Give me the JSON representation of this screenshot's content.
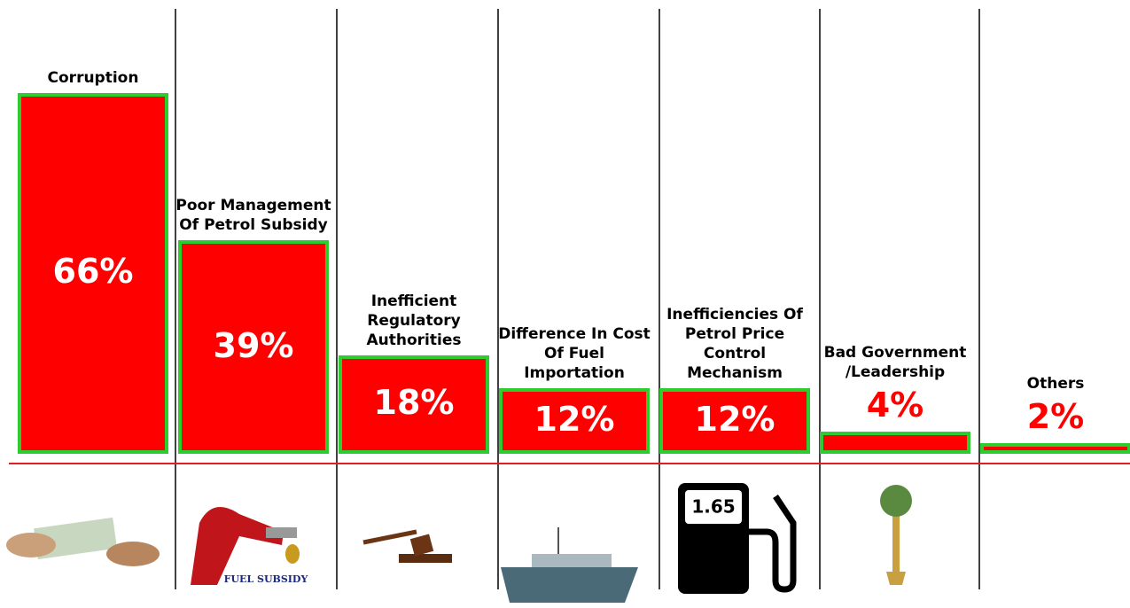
{
  "chart_data": {
    "type": "bar",
    "categories": [
      "Corruption",
      "Poor Management Of Petrol Subsidy",
      "Inefficient Regulatory Authorities",
      "Difference In Cost Of Fuel Importation",
      "Inefficiencies Of Petrol Price Control Mechanism",
      "Bad Government /Leadership",
      "Others"
    ],
    "values": [
      66,
      39,
      18,
      12,
      12,
      4,
      2
    ],
    "value_labels": [
      "66%",
      "39%",
      "18%",
      "12%",
      "12%",
      "4%",
      "2%"
    ],
    "color": "#ff0000",
    "ylim": [
      0,
      70
    ]
  },
  "icons": {
    "pump_display": "1.65",
    "fuel_subsidy": "FUEL SUBSIDY"
  }
}
